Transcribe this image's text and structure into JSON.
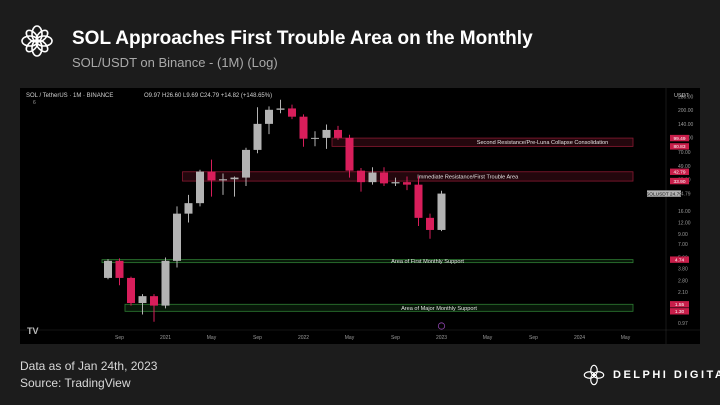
{
  "header": {
    "title": "SOL Approaches First Trouble Area on the Monthly",
    "subtitle": "SOL/USDT on Binance - (1M) (Log)"
  },
  "footer": {
    "data_as_of": "Data as of Jan 24th, 2023",
    "source": "Source: TradingView"
  },
  "brand": {
    "name": "DELPHI DIGITAL",
    "logo_icon": "delphi-flower-logo-icon"
  },
  "colors": {
    "background": "#1c1c1c",
    "chart_bg": "#000000",
    "up": "#b3b3b3",
    "down": "#d81e5b",
    "support": "#2e7d32",
    "resistance": "#8b1a32"
  },
  "chart_data": {
    "type": "candlestick",
    "scale": "log",
    "ylim": [
      0.9,
      300
    ],
    "ylabel": "USDT",
    "legend": {
      "symbol": "SOL / TetherUS · 1M · BINANCE",
      "ohlc": "O9.97 H26.60 L9.69 C24.79 +14.82 (+148.65%)",
      "indicator_count": "6"
    },
    "x_ticks": [
      "Sep",
      "2021",
      "May",
      "Sep",
      "2022",
      "May",
      "Sep",
      "2023",
      "May",
      "Sep",
      "2024",
      "May"
    ],
    "y_ticks": [
      280.0,
      200.0,
      140.0,
      100.0,
      70.0,
      49.0,
      35.0,
      24.79,
      16.0,
      12.0,
      9.0,
      7.0,
      5.0,
      3.8,
      2.8,
      2.1,
      1.55,
      1.3,
      0.97
    ],
    "price_tags": [
      {
        "label": "99.49",
        "value": 99.49,
        "color": "#c81e4a"
      },
      {
        "label": "80.83",
        "value": 80.83,
        "color": "#c81e4a"
      },
      {
        "label": "42.79",
        "value": 42.79,
        "color": "#c81e4a"
      },
      {
        "label": "33.90",
        "value": 33.9,
        "color": "#c81e4a"
      },
      {
        "label": "SOLUSDT 24.79",
        "value": 24.79,
        "color": "#b3b3b3"
      },
      {
        "label": "4.74",
        "value": 4.74,
        "color": "#c81e4a"
      },
      {
        "label": "1.55",
        "value": 1.55,
        "color": "#c81e4a"
      },
      {
        "label": "1.30",
        "value": 1.3,
        "color": "#c81e4a"
      }
    ],
    "zones": [
      {
        "label": "Second Resistance/Pre-Luna Collapse Consolidation",
        "low": 80.83,
        "high": 99.49,
        "kind": "resistance",
        "start_index": 20
      },
      {
        "label": "Immediate Resistance/First Trouble Area",
        "low": 33.9,
        "high": 42.79,
        "kind": "resistance",
        "start_index": 7
      },
      {
        "label": "Area of First Monthly Support",
        "low": 4.4,
        "high": 4.74,
        "kind": "support",
        "start_index": 0
      },
      {
        "label": "Area of Major Monthly Support",
        "low": 1.3,
        "high": 1.55,
        "kind": "support",
        "start_index": 2
      }
    ],
    "candles": [
      {
        "date": "2020-08",
        "o": 3.0,
        "h": 4.8,
        "l": 2.9,
        "c": 4.6
      },
      {
        "date": "2020-09",
        "o": 4.6,
        "h": 4.9,
        "l": 2.5,
        "c": 3.0
      },
      {
        "date": "2020-10",
        "o": 3.0,
        "h": 3.1,
        "l": 1.5,
        "c": 1.6
      },
      {
        "date": "2020-11",
        "o": 1.6,
        "h": 2.0,
        "l": 1.2,
        "c": 1.9
      },
      {
        "date": "2020-12",
        "o": 1.9,
        "h": 2.0,
        "l": 1.0,
        "c": 1.5
      },
      {
        "date": "2021-01",
        "o": 1.5,
        "h": 5.0,
        "l": 1.4,
        "c": 4.6
      },
      {
        "date": "2021-02",
        "o": 4.6,
        "h": 18.0,
        "l": 3.9,
        "c": 15.0
      },
      {
        "date": "2021-03",
        "o": 15.0,
        "h": 24.0,
        "l": 12.0,
        "c": 19.5
      },
      {
        "date": "2021-04",
        "o": 19.5,
        "h": 45.0,
        "l": 18.0,
        "c": 43.0
      },
      {
        "date": "2021-05",
        "o": 43.0,
        "h": 58.0,
        "l": 23.0,
        "c": 34.5
      },
      {
        "date": "2021-06",
        "o": 34.5,
        "h": 41.0,
        "l": 24.0,
        "c": 35.5
      },
      {
        "date": "2021-07",
        "o": 35.5,
        "h": 38.0,
        "l": 23.0,
        "c": 37.0
      },
      {
        "date": "2021-08",
        "o": 37.0,
        "h": 78.0,
        "l": 30.0,
        "c": 74.0
      },
      {
        "date": "2021-09",
        "o": 74.0,
        "h": 215.0,
        "l": 68.0,
        "c": 142.0
      },
      {
        "date": "2021-10",
        "o": 142.0,
        "h": 220.0,
        "l": 110.0,
        "c": 202.0
      },
      {
        "date": "2021-11",
        "o": 202.0,
        "h": 260.0,
        "l": 185.0,
        "c": 209.0
      },
      {
        "date": "2021-12",
        "o": 209.0,
        "h": 230.0,
        "l": 160.0,
        "c": 170.0
      },
      {
        "date": "2022-01",
        "o": 170.0,
        "h": 180.0,
        "l": 80.0,
        "c": 98.0
      },
      {
        "date": "2022-02",
        "o": 98.0,
        "h": 118.0,
        "l": 81.0,
        "c": 100.0
      },
      {
        "date": "2022-03",
        "o": 100.0,
        "h": 140.0,
        "l": 76.0,
        "c": 122.0
      },
      {
        "date": "2022-04",
        "o": 122.0,
        "h": 135.0,
        "l": 95.0,
        "c": 100.0
      },
      {
        "date": "2022-05",
        "o": 100.0,
        "h": 108.0,
        "l": 37.0,
        "c": 44.0
      },
      {
        "date": "2022-06",
        "o": 44.0,
        "h": 47.0,
        "l": 26.0,
        "c": 33.0
      },
      {
        "date": "2022-07",
        "o": 33.0,
        "h": 48.0,
        "l": 31.0,
        "c": 42.0
      },
      {
        "date": "2022-08",
        "o": 42.0,
        "h": 48.0,
        "l": 30.0,
        "c": 32.0
      },
      {
        "date": "2022-09",
        "o": 32.0,
        "h": 37.0,
        "l": 30.0,
        "c": 33.0
      },
      {
        "date": "2022-10",
        "o": 33.0,
        "h": 38.0,
        "l": 27.0,
        "c": 31.0
      },
      {
        "date": "2022-11",
        "o": 31.0,
        "h": 38.0,
        "l": 11.0,
        "c": 13.5
      },
      {
        "date": "2022-12",
        "o": 13.5,
        "h": 15.0,
        "l": 8.0,
        "c": 9.97
      },
      {
        "date": "2023-01",
        "o": 9.97,
        "h": 26.6,
        "l": 9.69,
        "c": 24.79
      }
    ]
  }
}
